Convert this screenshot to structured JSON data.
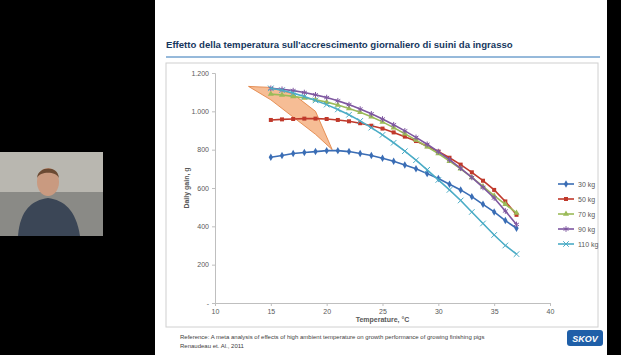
{
  "chart_data": {
    "type": "line",
    "title": "Effetto della temperatura sull'accrescimento giornaliero di suini da ingrasso",
    "x_label": "Temperature, °C",
    "y_label": "Daily gain, g",
    "x": [
      15,
      16,
      17,
      18,
      19,
      20,
      21,
      22,
      23,
      24,
      25,
      26,
      27,
      28,
      29,
      30,
      31,
      32,
      33,
      34,
      35,
      36,
      37
    ],
    "series": [
      {
        "name": "30 kg",
        "color": "#3a6db5",
        "marker": "diamond",
        "values": [
          760,
          770,
          780,
          785,
          790,
          795,
          795,
          790,
          780,
          770,
          755,
          740,
          720,
          700,
          675,
          650,
          620,
          590,
          555,
          515,
          475,
          430,
          390
        ]
      },
      {
        "name": "50 kg",
        "color": "#c0392b",
        "marker": "square",
        "values": [
          955,
          958,
          960,
          962,
          962,
          960,
          955,
          948,
          938,
          925,
          910,
          890,
          868,
          845,
          818,
          790,
          758,
          722,
          682,
          638,
          590,
          530,
          460
        ]
      },
      {
        "name": "70 kg",
        "color": "#9bbb59",
        "marker": "triangle",
        "values": [
          1090,
          1085,
          1078,
          1070,
          1060,
          1048,
          1033,
          1015,
          995,
          972,
          945,
          915,
          883,
          850,
          815,
          780,
          740,
          700,
          655,
          608,
          560,
          515,
          470
        ]
      },
      {
        "name": "90 kg",
        "color": "#7e57a0",
        "marker": "asterisk",
        "values": [
          1120,
          1115,
          1108,
          1098,
          1086,
          1072,
          1055,
          1035,
          1012,
          987,
          960,
          930,
          898,
          864,
          828,
          790,
          748,
          703,
          655,
          603,
          548,
          480,
          410
        ]
      },
      {
        "name": "110 kg",
        "color": "#4bacc6",
        "marker": "x",
        "values": [
          1120,
          1110,
          1095,
          1077,
          1057,
          1035,
          1010,
          982,
          950,
          915,
          877,
          836,
          792,
          745,
          695,
          642,
          590,
          535,
          475,
          415,
          355,
          300,
          255
        ]
      }
    ],
    "band": {
      "x": [
        13,
        15,
        17,
        19,
        20.5
      ],
      "upper": [
        1130,
        1125,
        1090,
        1000,
        800
      ],
      "lower": [
        1130,
        1060,
        970,
        880,
        800
      ],
      "color": "#f4b183"
    },
    "xlim": [
      10,
      40
    ],
    "xticks": [
      10,
      15,
      20,
      25,
      30,
      35,
      40
    ],
    "ylim": [
      0,
      1200
    ],
    "yticks": [
      {
        "value": 0,
        "label": "-"
      },
      200,
      400,
      600,
      800,
      {
        "value": 1000,
        "label": "1.000"
      },
      {
        "value": 1200,
        "label": "1.200"
      }
    ],
    "grid": false,
    "legend": "right"
  },
  "page": {
    "reference": [
      "Reference: A meta analysis of effects of high ambient temperature on growth performance of growing finishing pigs",
      "Renaudeau et. Al., 2011"
    ],
    "logo": "SKOV"
  }
}
